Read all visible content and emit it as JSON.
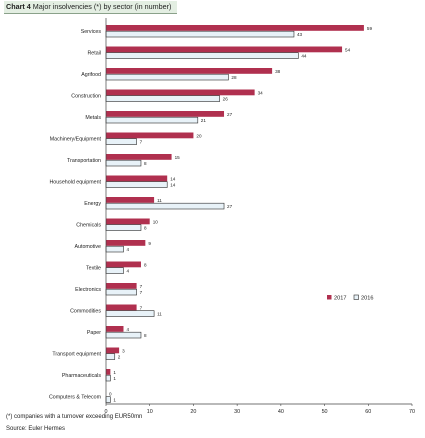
{
  "chart_title_prefix": "Chart 4",
  "chart_title_rest": "Major insolvencies (*) by sector (in number)",
  "footnote": "(*) companies with a turnover exceeding EUR50mn",
  "source": "Source: Euler Hermes",
  "chart_data": {
    "type": "bar",
    "orientation": "horizontal",
    "categories": [
      "Services",
      "Retail",
      "Agrifood",
      "Construction",
      "Metals",
      "Machinery/Equipment",
      "Transportation",
      "Household equipment",
      "Energy",
      "Chemicals",
      "Automotive",
      "Textile",
      "Electronics",
      "Commodities",
      "Paper",
      "Transport equipment",
      "Pharmaceuticals",
      "Computers & Telecom"
    ],
    "series": [
      {
        "name": "2017",
        "color": "#b0304f",
        "values": [
          59,
          54,
          38,
          34,
          27,
          20,
          15,
          14,
          11,
          10,
          9,
          8,
          7,
          7,
          4,
          3,
          1,
          0
        ]
      },
      {
        "name": "2016",
        "color": "#e8f2f8",
        "values": [
          43,
          44,
          28,
          26,
          21,
          7,
          8,
          14,
          27,
          8,
          4,
          4,
          7,
          11,
          8,
          2,
          1,
          1
        ]
      }
    ],
    "xlim": [
      0,
      70
    ],
    "xticks": [
      0,
      10,
      20,
      30,
      40,
      50,
      60,
      70
    ],
    "legend_position": "right",
    "grid": false
  }
}
